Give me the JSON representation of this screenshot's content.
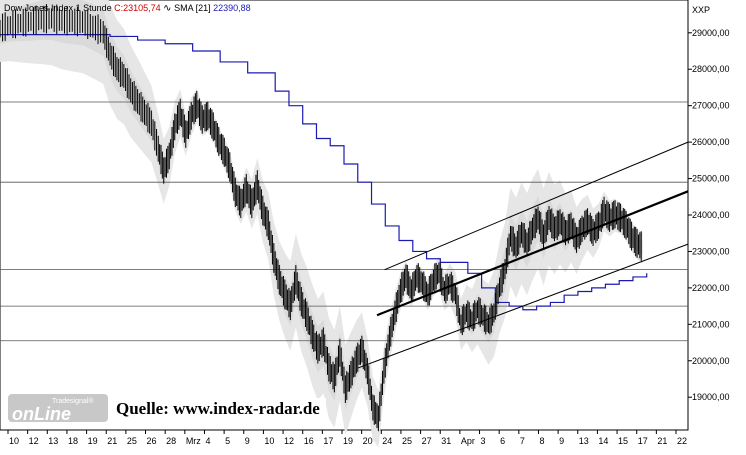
{
  "header": {
    "instrument": "Dow Jones Index",
    "timeframe": "1 Stunde",
    "close_label": "C:23105,74",
    "sma_label": "SMA [21]",
    "sma_value": "22390,88"
  },
  "axis": {
    "currency": "XXP",
    "price_ticks": [
      "29000,00",
      "28000,00",
      "27000,00",
      "26000,00",
      "25000,00",
      "24000,00",
      "23000,00",
      "22000,00",
      "21000,00",
      "20000,00",
      "19000,00"
    ],
    "date_ticks": [
      "10",
      "12",
      "13",
      "18",
      "19",
      "21",
      "25",
      "26",
      "28",
      "Mrz",
      "4",
      "5",
      "9",
      "10",
      "12",
      "16",
      "17",
      "19",
      "20",
      "24",
      "25",
      "27",
      "31",
      "Apr",
      "3",
      "6",
      "7",
      "8",
      "9",
      "13",
      "14",
      "15",
      "17",
      "21",
      "22"
    ]
  },
  "branding": {
    "logo_small": "Tradesignal®",
    "logo_big": "onLine",
    "source": "Quelle: www.index-radar.de"
  },
  "colors": {
    "price": "#cc0000",
    "sma": "#1b1bb4",
    "bars": "#000000",
    "band": "#e6e6e6",
    "band_inner": "#d4d4d4"
  },
  "chart_data": {
    "type": "ohlc",
    "title": "Dow Jones Index 1 Stunde",
    "last_close": 23105.74,
    "ylim": [
      18100,
      29900
    ],
    "horizontal_levels": [
      27100,
      24900,
      22500,
      21500,
      20550
    ],
    "trendlines": [
      {
        "from": [
          0.548,
          21250
        ],
        "to": [
          1.0,
          24650
        ]
      },
      {
        "from": [
          0.559,
          22500
        ],
        "to": [
          1.0,
          26000
        ]
      },
      {
        "from": [
          0.52,
          19800
        ],
        "to": [
          1.0,
          23200
        ]
      }
    ],
    "sma_series": [
      [
        0.0,
        28950
      ],
      [
        0.06,
        28950
      ],
      [
        0.12,
        28950
      ],
      [
        0.16,
        28900
      ],
      [
        0.2,
        28800
      ],
      [
        0.24,
        28700
      ],
      [
        0.28,
        28500
      ],
      [
        0.32,
        28200
      ],
      [
        0.36,
        27900
      ],
      [
        0.4,
        27400
      ],
      [
        0.42,
        27000
      ],
      [
        0.44,
        26500
      ],
      [
        0.46,
        26100
      ],
      [
        0.48,
        25900
      ],
      [
        0.5,
        25400
      ],
      [
        0.52,
        24900
      ],
      [
        0.54,
        24300
      ],
      [
        0.56,
        23700
      ],
      [
        0.58,
        23300
      ],
      [
        0.6,
        23000
      ],
      [
        0.62,
        22800
      ],
      [
        0.64,
        22700
      ],
      [
        0.66,
        22700
      ],
      [
        0.68,
        22400
      ],
      [
        0.7,
        22000
      ],
      [
        0.72,
        21600
      ],
      [
        0.74,
        21500
      ],
      [
        0.76,
        21400
      ],
      [
        0.78,
        21500
      ],
      [
        0.8,
        21600
      ],
      [
        0.82,
        21800
      ],
      [
        0.84,
        21900
      ],
      [
        0.86,
        22000
      ],
      [
        0.88,
        22100
      ],
      [
        0.9,
        22200
      ],
      [
        0.92,
        22300
      ],
      [
        0.94,
        22400
      ]
    ],
    "price_path": [
      [
        0.0,
        29100
      ],
      [
        0.015,
        29200
      ],
      [
        0.03,
        29250
      ],
      [
        0.045,
        29300
      ],
      [
        0.06,
        29350
      ],
      [
        0.075,
        29380
      ],
      [
        0.09,
        29320
      ],
      [
        0.105,
        29300
      ],
      [
        0.12,
        29280
      ],
      [
        0.135,
        29150
      ],
      [
        0.15,
        29000
      ],
      [
        0.16,
        28400
      ],
      [
        0.17,
        28000
      ],
      [
        0.18,
        27800
      ],
      [
        0.19,
        27400
      ],
      [
        0.2,
        27100
      ],
      [
        0.21,
        26800
      ],
      [
        0.22,
        26500
      ],
      [
        0.23,
        25800
      ],
      [
        0.238,
        25200
      ],
      [
        0.246,
        25600
      ],
      [
        0.254,
        26400
      ],
      [
        0.262,
        26800
      ],
      [
        0.27,
        26200
      ],
      [
        0.278,
        26700
      ],
      [
        0.286,
        27000
      ],
      [
        0.294,
        26600
      ],
      [
        0.302,
        26700
      ],
      [
        0.31,
        26400
      ],
      [
        0.318,
        26000
      ],
      [
        0.326,
        25700
      ],
      [
        0.334,
        25300
      ],
      [
        0.342,
        24600
      ],
      [
        0.35,
        24300
      ],
      [
        0.358,
        24700
      ],
      [
        0.366,
        24300
      ],
      [
        0.374,
        24800
      ],
      [
        0.382,
        24100
      ],
      [
        0.39,
        23700
      ],
      [
        0.398,
        22800
      ],
      [
        0.406,
        22200
      ],
      [
        0.414,
        21800
      ],
      [
        0.422,
        21500
      ],
      [
        0.43,
        22200
      ],
      [
        0.438,
        21600
      ],
      [
        0.446,
        21200
      ],
      [
        0.454,
        20700
      ],
      [
        0.462,
        20300
      ],
      [
        0.47,
        20500
      ],
      [
        0.478,
        19800
      ],
      [
        0.486,
        19500
      ],
      [
        0.494,
        20200
      ],
      [
        0.502,
        19200
      ],
      [
        0.51,
        19600
      ],
      [
        0.518,
        20000
      ],
      [
        0.526,
        20300
      ],
      [
        0.534,
        19700
      ],
      [
        0.542,
        18700
      ],
      [
        0.55,
        18400
      ],
      [
        0.558,
        19700
      ],
      [
        0.566,
        20600
      ],
      [
        0.574,
        21300
      ],
      [
        0.582,
        21900
      ],
      [
        0.59,
        22300
      ],
      [
        0.598,
        21900
      ],
      [
        0.606,
        22300
      ],
      [
        0.614,
        22100
      ],
      [
        0.622,
        21800
      ],
      [
        0.63,
        22200
      ],
      [
        0.638,
        22400
      ],
      [
        0.646,
        21900
      ],
      [
        0.654,
        22100
      ],
      [
        0.662,
        21800
      ],
      [
        0.67,
        21000
      ],
      [
        0.678,
        21300
      ],
      [
        0.686,
        21100
      ],
      [
        0.694,
        21400
      ],
      [
        0.702,
        21200
      ],
      [
        0.71,
        21000
      ],
      [
        0.718,
        21300
      ],
      [
        0.726,
        22000
      ],
      [
        0.734,
        22500
      ],
      [
        0.742,
        23400
      ],
      [
        0.75,
        23100
      ],
      [
        0.758,
        23500
      ],
      [
        0.766,
        23200
      ],
      [
        0.774,
        23600
      ],
      [
        0.782,
        23900
      ],
      [
        0.79,
        23400
      ],
      [
        0.798,
        23900
      ],
      [
        0.806,
        23600
      ],
      [
        0.814,
        23800
      ],
      [
        0.822,
        23500
      ],
      [
        0.83,
        23700
      ],
      [
        0.838,
        23300
      ],
      [
        0.846,
        23600
      ],
      [
        0.854,
        23800
      ],
      [
        0.862,
        23500
      ],
      [
        0.87,
        23700
      ],
      [
        0.878,
        24100
      ],
      [
        0.886,
        23900
      ],
      [
        0.894,
        24000
      ],
      [
        0.902,
        23900
      ],
      [
        0.91,
        23700
      ],
      [
        0.918,
        23400
      ],
      [
        0.926,
        23200
      ],
      [
        0.934,
        23100
      ]
    ]
  }
}
